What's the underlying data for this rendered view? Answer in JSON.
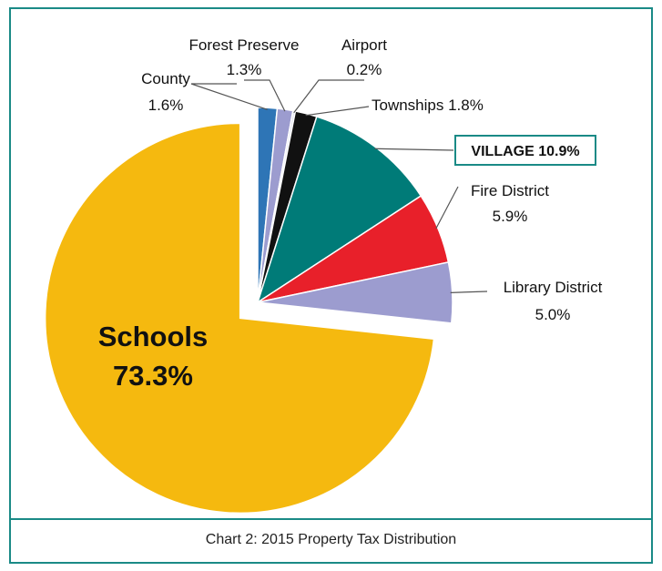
{
  "chart_data": {
    "type": "pie",
    "caption": "Chart 2: 2015 Property Tax Distribution",
    "slices": [
      {
        "name": "Schools",
        "value": 73.3,
        "label": "73.3%",
        "color": "#f5b90f",
        "exploded": true
      },
      {
        "name": "County",
        "value": 1.6,
        "label": "1.6%",
        "color": "#2e75b6"
      },
      {
        "name": "Forest Preserve",
        "value": 1.3,
        "label": "1.3%",
        "color": "#9c9ccf"
      },
      {
        "name": "Airport",
        "value": 0.2,
        "label": "0.2%",
        "color": "#dfe4ef"
      },
      {
        "name": "Townships",
        "value": 1.8,
        "label": "Townships 1.8%",
        "color": "#111111"
      },
      {
        "name": "VILLAGE",
        "value": 10.9,
        "label": "VILLAGE 10.9%",
        "color": "#007b78",
        "highlighted": true
      },
      {
        "name": "Fire District",
        "value": 5.9,
        "label": "5.9%",
        "color": "#e8202a"
      },
      {
        "name": "Library District",
        "value": 5.0,
        "label": "5.0%",
        "color": "#9c9ccf"
      }
    ],
    "accent_color": "#1a8a86"
  }
}
